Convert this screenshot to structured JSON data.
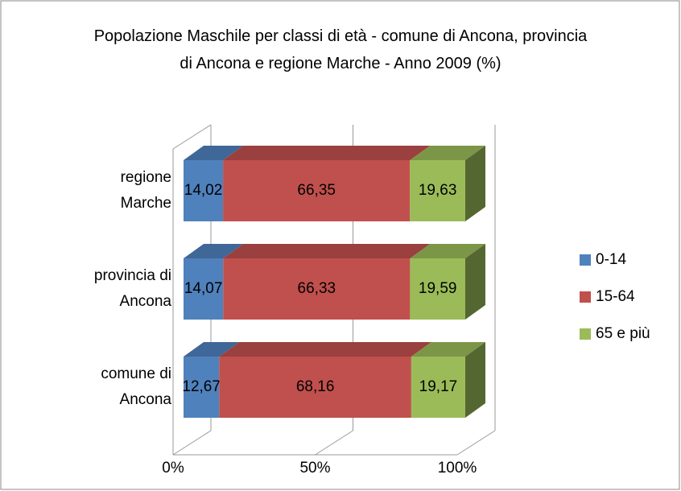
{
  "chart_data": {
    "type": "bar3d_stacked_horizontal",
    "title": "Popolazione Maschile per classi di età - comune di Ancona, provincia di Ancona e regione Marche - Anno 2009 (%)",
    "categories": [
      "comune di Ancona",
      "provincia di Ancona",
      "regione Marche"
    ],
    "series": [
      {
        "name": "0-14",
        "color": "#4f81bd",
        "values": [
          12.67,
          14.07,
          14.02
        ],
        "value_labels": [
          "12,67",
          "14,07",
          "14,02"
        ]
      },
      {
        "name": "15-64",
        "color": "#c0504d",
        "values": [
          68.16,
          66.33,
          66.35
        ],
        "value_labels": [
          "68,16",
          "66,33",
          "66,35"
        ]
      },
      {
        "name": "65 e più",
        "color": "#9bbb59",
        "values": [
          19.17,
          19.59,
          19.63
        ],
        "value_labels": [
          "19,17",
          "19,59",
          "19,63"
        ]
      }
    ],
    "xlim": [
      0,
      100
    ],
    "xticks": [
      {
        "value": 0,
        "label": "0%"
      },
      {
        "value": 50,
        "label": "50%"
      },
      {
        "value": 100,
        "label": "100%"
      }
    ],
    "grid": true,
    "legend": "right"
  }
}
